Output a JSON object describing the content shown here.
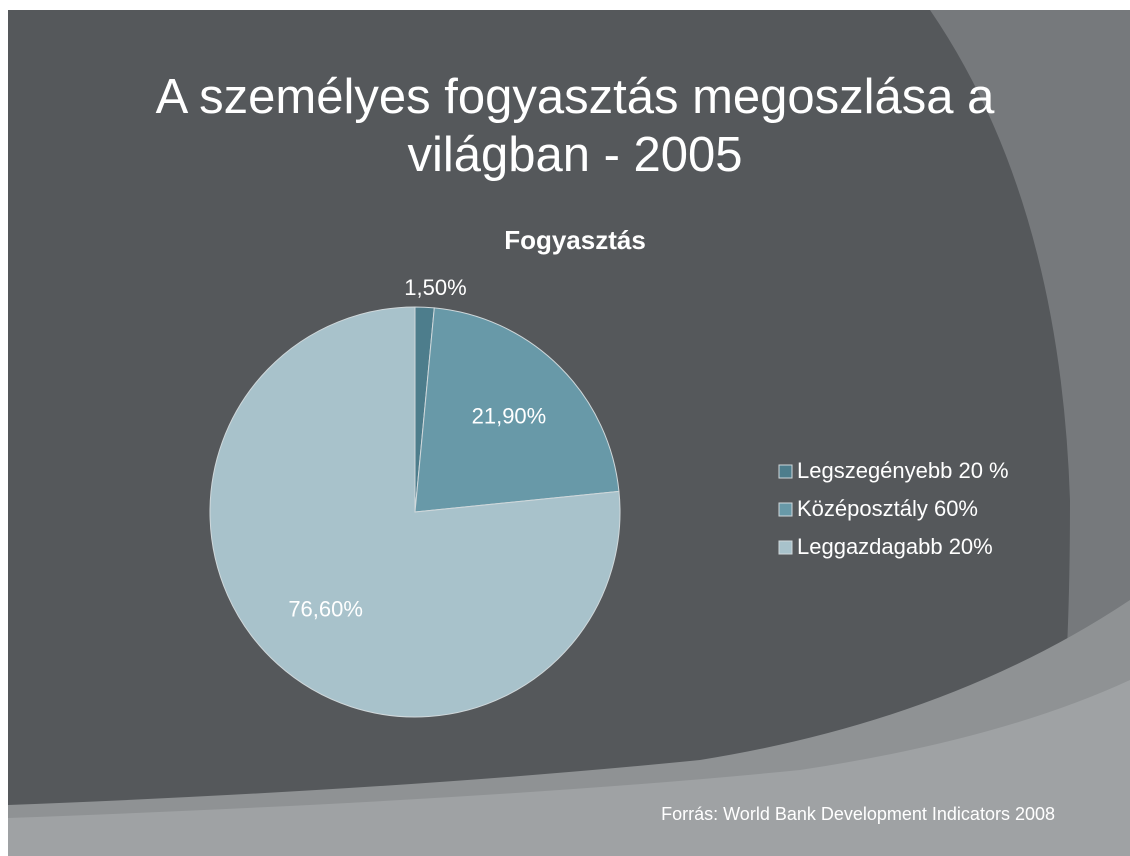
{
  "slide": {
    "title": "A személyes fogyasztás megoszlása a világban - 2005",
    "source": "Forrás: World Bank Development Indicators 2008"
  },
  "chart_data": {
    "type": "pie",
    "title": "Fogyasztás",
    "categories": [
      "Legszegényebb 20 %",
      "Középosztály 60%",
      "Leggazdagabb 20%"
    ],
    "values": [
      1.5,
      21.9,
      76.6
    ],
    "value_labels": [
      "1,50%",
      "21,90%",
      "76,60%"
    ],
    "colors": [
      "#4d7d8c",
      "#6899a8",
      "#a8c2cb"
    ],
    "legend": "right"
  }
}
